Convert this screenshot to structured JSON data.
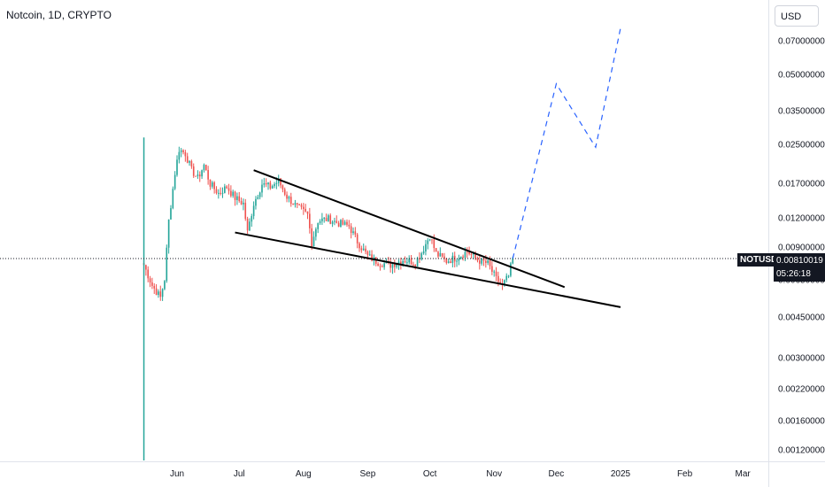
{
  "header": {
    "title": "Notcoin, 1D, CRYPTO"
  },
  "axis": {
    "currency": "USD"
  },
  "price_marker": {
    "symbol": "NOTUSD",
    "price": "0.00810019",
    "countdown": "05:26:18"
  },
  "colors": {
    "up": "#26a69a",
    "down": "#ef5350",
    "projection": "#2962ff",
    "trendline": "#000000",
    "price_line": "#131722"
  },
  "chart_data": {
    "type": "candlestick",
    "title": "Notcoin, 1D, CRYPTO",
    "symbol": "NOTUSD",
    "currency": "USD",
    "y_scale": "log",
    "y_ticks": [
      "0.07000000",
      "0.05000000",
      "0.03500000",
      "0.02500000",
      "0.01700000",
      "0.01200000",
      "0.00900000",
      "0.00650000",
      "0.00450000",
      "0.00300000",
      "0.00220000",
      "0.00160000",
      "0.00120000"
    ],
    "y_tick_values": [
      0.07,
      0.05,
      0.035,
      0.025,
      0.017,
      0.012,
      0.009,
      0.0065,
      0.0045,
      0.003,
      0.0022,
      0.0016,
      0.0012
    ],
    "x_ticks": [
      "Jun",
      "Jul",
      "Aug",
      "Sep",
      "Oct",
      "Nov",
      "Dec",
      "2025",
      "Feb",
      "Mar"
    ],
    "x_tick_dates": [
      "2024-06-01",
      "2024-07-01",
      "2024-08-01",
      "2024-09-01",
      "2024-10-01",
      "2024-11-01",
      "2024-12-01",
      "2025-01-01",
      "2025-02-01",
      "2025-03-01"
    ],
    "last_price": 0.00810019,
    "daily_closes": [
      [
        "2024-05-16",
        0.0076
      ],
      [
        "2024-05-20",
        0.0062
      ],
      [
        "2024-05-24",
        0.0055
      ],
      [
        "2024-05-26",
        0.0066
      ],
      [
        "2024-05-28",
        0.0118
      ],
      [
        "2024-05-31",
        0.019
      ],
      [
        "2024-06-02",
        0.024
      ],
      [
        "2024-06-05",
        0.023
      ],
      [
        "2024-06-08",
        0.0195
      ],
      [
        "2024-06-11",
        0.018
      ],
      [
        "2024-06-14",
        0.0205
      ],
      [
        "2024-06-17",
        0.017
      ],
      [
        "2024-06-21",
        0.0155
      ],
      [
        "2024-06-25",
        0.0165
      ],
      [
        "2024-06-29",
        0.0148
      ],
      [
        "2024-07-03",
        0.014
      ],
      [
        "2024-07-05",
        0.0105
      ],
      [
        "2024-07-08",
        0.014
      ],
      [
        "2024-07-12",
        0.017
      ],
      [
        "2024-07-16",
        0.0165
      ],
      [
        "2024-07-20",
        0.0175
      ],
      [
        "2024-07-24",
        0.015
      ],
      [
        "2024-07-29",
        0.0135
      ],
      [
        "2024-08-03",
        0.0125
      ],
      [
        "2024-08-05",
        0.0095
      ],
      [
        "2024-08-08",
        0.0118
      ],
      [
        "2024-08-13",
        0.012
      ],
      [
        "2024-08-18",
        0.0115
      ],
      [
        "2024-08-23",
        0.0112
      ],
      [
        "2024-08-27",
        0.0096
      ],
      [
        "2024-09-01",
        0.0083
      ],
      [
        "2024-09-06",
        0.0078
      ],
      [
        "2024-09-12",
        0.0076
      ],
      [
        "2024-09-18",
        0.008
      ],
      [
        "2024-09-24",
        0.0078
      ],
      [
        "2024-09-27",
        0.0086
      ],
      [
        "2024-10-01",
        0.0102
      ],
      [
        "2024-10-04",
        0.0085
      ],
      [
        "2024-10-09",
        0.0079
      ],
      [
        "2024-10-14",
        0.0082
      ],
      [
        "2024-10-19",
        0.0087
      ],
      [
        "2024-10-24",
        0.008
      ],
      [
        "2024-10-29",
        0.0077
      ],
      [
        "2024-11-02",
        0.0066
      ],
      [
        "2024-11-05",
        0.0062
      ],
      [
        "2024-11-08",
        0.0068
      ],
      [
        "2024-11-10",
        0.0081
      ]
    ],
    "trendlines": {
      "upper": {
        "start": [
          "2024-07-08",
          0.0195
        ],
        "end": [
          "2024-12-05",
          0.0061
        ]
      },
      "lower": {
        "start": [
          "2024-06-29",
          0.0105
        ],
        "end": [
          "2025-01-01",
          0.005
        ]
      }
    },
    "projection": [
      [
        "2024-11-10",
        0.0081
      ],
      [
        "2024-12-01",
        0.046
      ],
      [
        "2024-12-20",
        0.0245
      ],
      [
        "2025-01-01",
        0.08
      ]
    ]
  }
}
